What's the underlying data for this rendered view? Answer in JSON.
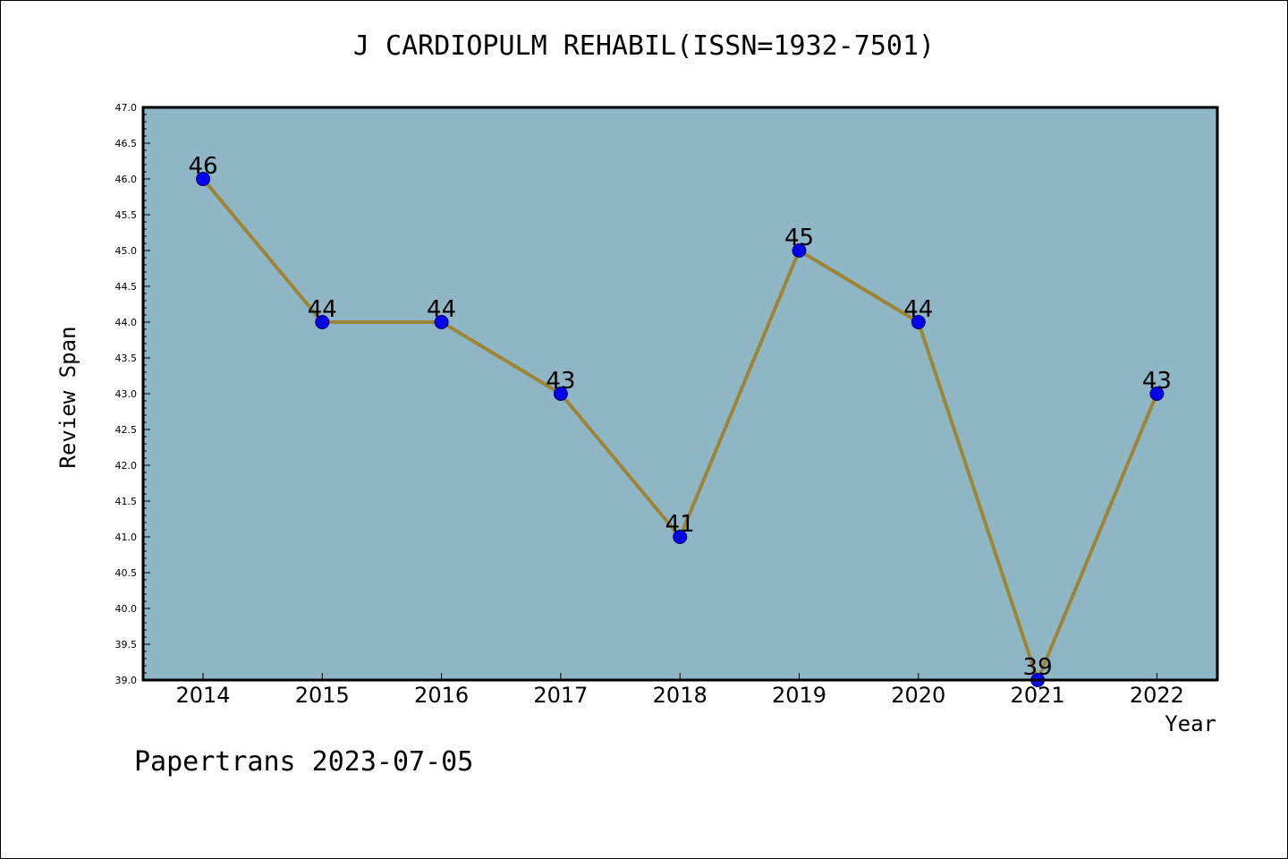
{
  "footer": "Papertrans 2023-07-05",
  "colors": {
    "plot_background": "#8fb6c4",
    "line": "#9c8536",
    "marker": "#0000ee",
    "marker_edge": "#00006a",
    "axes": "#000000"
  },
  "chart_data": {
    "type": "line",
    "title": "J CARDIOPULM REHABIL(ISSN=1932-7501)",
    "xlabel": "Year",
    "ylabel": "Review Span",
    "x": [
      "2014",
      "2015",
      "2016",
      "2017",
      "2018",
      "2019",
      "2020",
      "2021",
      "2022"
    ],
    "values": [
      46,
      44,
      44,
      43,
      41,
      45,
      44,
      39,
      43
    ],
    "data_labels": [
      "46",
      "44",
      "44",
      "43",
      "41",
      "45",
      "44",
      "39",
      "43"
    ],
    "ylim": [
      39.0,
      47.0
    ],
    "ytick_step": 0.5,
    "grid": false,
    "legend": "none"
  }
}
